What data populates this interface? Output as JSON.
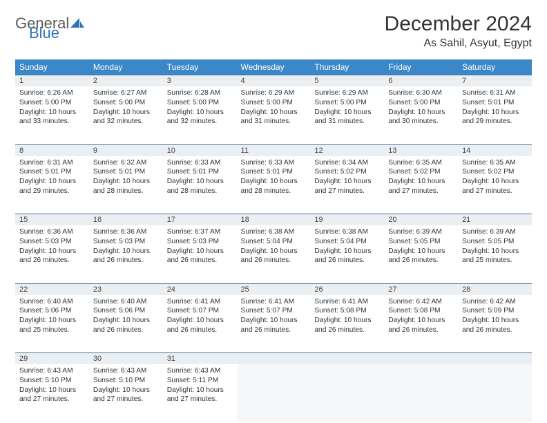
{
  "logo": {
    "word1": "General",
    "word2": "Blue",
    "icon_color": "#2e73b8",
    "text_gray": "#5a5a5a"
  },
  "title": "December 2024",
  "location": "As Sahil, Asyut, Egypt",
  "colors": {
    "header_bg": "#3b87c8",
    "header_text": "#ffffff",
    "daynum_bg": "#eceff1",
    "rule": "#3b72a5",
    "body_text": "#333333"
  },
  "weekdays": [
    "Sunday",
    "Monday",
    "Tuesday",
    "Wednesday",
    "Thursday",
    "Friday",
    "Saturday"
  ],
  "weeks": [
    [
      {
        "n": 1,
        "sr": "6:26 AM",
        "ss": "5:00 PM",
        "dl": "10 hours and 33 minutes."
      },
      {
        "n": 2,
        "sr": "6:27 AM",
        "ss": "5:00 PM",
        "dl": "10 hours and 32 minutes."
      },
      {
        "n": 3,
        "sr": "6:28 AM",
        "ss": "5:00 PM",
        "dl": "10 hours and 32 minutes."
      },
      {
        "n": 4,
        "sr": "6:29 AM",
        "ss": "5:00 PM",
        "dl": "10 hours and 31 minutes."
      },
      {
        "n": 5,
        "sr": "6:29 AM",
        "ss": "5:00 PM",
        "dl": "10 hours and 31 minutes."
      },
      {
        "n": 6,
        "sr": "6:30 AM",
        "ss": "5:00 PM",
        "dl": "10 hours and 30 minutes."
      },
      {
        "n": 7,
        "sr": "6:31 AM",
        "ss": "5:01 PM",
        "dl": "10 hours and 29 minutes."
      }
    ],
    [
      {
        "n": 8,
        "sr": "6:31 AM",
        "ss": "5:01 PM",
        "dl": "10 hours and 29 minutes."
      },
      {
        "n": 9,
        "sr": "6:32 AM",
        "ss": "5:01 PM",
        "dl": "10 hours and 28 minutes."
      },
      {
        "n": 10,
        "sr": "6:33 AM",
        "ss": "5:01 PM",
        "dl": "10 hours and 28 minutes."
      },
      {
        "n": 11,
        "sr": "6:33 AM",
        "ss": "5:01 PM",
        "dl": "10 hours and 28 minutes."
      },
      {
        "n": 12,
        "sr": "6:34 AM",
        "ss": "5:02 PM",
        "dl": "10 hours and 27 minutes."
      },
      {
        "n": 13,
        "sr": "6:35 AM",
        "ss": "5:02 PM",
        "dl": "10 hours and 27 minutes."
      },
      {
        "n": 14,
        "sr": "6:35 AM",
        "ss": "5:02 PM",
        "dl": "10 hours and 27 minutes."
      }
    ],
    [
      {
        "n": 15,
        "sr": "6:36 AM",
        "ss": "5:03 PM",
        "dl": "10 hours and 26 minutes."
      },
      {
        "n": 16,
        "sr": "6:36 AM",
        "ss": "5:03 PM",
        "dl": "10 hours and 26 minutes."
      },
      {
        "n": 17,
        "sr": "6:37 AM",
        "ss": "5:03 PM",
        "dl": "10 hours and 26 minutes."
      },
      {
        "n": 18,
        "sr": "6:38 AM",
        "ss": "5:04 PM",
        "dl": "10 hours and 26 minutes."
      },
      {
        "n": 19,
        "sr": "6:38 AM",
        "ss": "5:04 PM",
        "dl": "10 hours and 26 minutes."
      },
      {
        "n": 20,
        "sr": "6:39 AM",
        "ss": "5:05 PM",
        "dl": "10 hours and 26 minutes."
      },
      {
        "n": 21,
        "sr": "6:39 AM",
        "ss": "5:05 PM",
        "dl": "10 hours and 25 minutes."
      }
    ],
    [
      {
        "n": 22,
        "sr": "6:40 AM",
        "ss": "5:06 PM",
        "dl": "10 hours and 25 minutes."
      },
      {
        "n": 23,
        "sr": "6:40 AM",
        "ss": "5:06 PM",
        "dl": "10 hours and 26 minutes."
      },
      {
        "n": 24,
        "sr": "6:41 AM",
        "ss": "5:07 PM",
        "dl": "10 hours and 26 minutes."
      },
      {
        "n": 25,
        "sr": "6:41 AM",
        "ss": "5:07 PM",
        "dl": "10 hours and 26 minutes."
      },
      {
        "n": 26,
        "sr": "6:41 AM",
        "ss": "5:08 PM",
        "dl": "10 hours and 26 minutes."
      },
      {
        "n": 27,
        "sr": "6:42 AM",
        "ss": "5:08 PM",
        "dl": "10 hours and 26 minutes."
      },
      {
        "n": 28,
        "sr": "6:42 AM",
        "ss": "5:09 PM",
        "dl": "10 hours and 26 minutes."
      }
    ],
    [
      {
        "n": 29,
        "sr": "6:43 AM",
        "ss": "5:10 PM",
        "dl": "10 hours and 27 minutes."
      },
      {
        "n": 30,
        "sr": "6:43 AM",
        "ss": "5:10 PM",
        "dl": "10 hours and 27 minutes."
      },
      {
        "n": 31,
        "sr": "6:43 AM",
        "ss": "5:11 PM",
        "dl": "10 hours and 27 minutes."
      },
      null,
      null,
      null,
      null
    ]
  ],
  "labels": {
    "sunrise": "Sunrise:",
    "sunset": "Sunset:",
    "daylight": "Daylight:"
  }
}
